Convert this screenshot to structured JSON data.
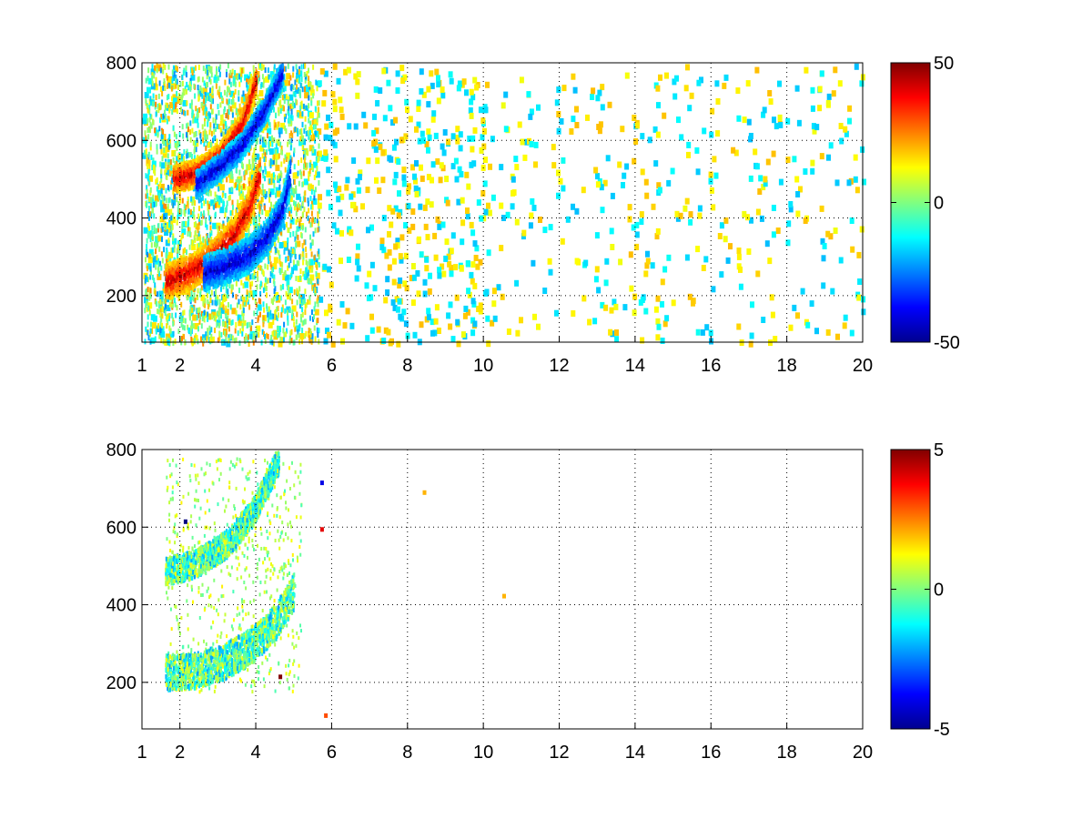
{
  "chart_data": [
    {
      "type": "heatmap",
      "title": "",
      "xlabel": "",
      "ylabel": "",
      "xlim": [
        1,
        20
      ],
      "ylim": [
        80,
        800
      ],
      "x_ticks": [
        1,
        2,
        4,
        6,
        8,
        10,
        12,
        14,
        16,
        18,
        20
      ],
      "x_tick_labels": [
        "1",
        "2",
        "4",
        "6",
        "8",
        "10",
        "12",
        "14",
        "16",
        "18",
        "20"
      ],
      "y_ticks": [
        200,
        400,
        600,
        800
      ],
      "y_tick_labels": [
        "200",
        "400",
        "600",
        "800"
      ],
      "grid": true,
      "colormap": "jet",
      "clim": [
        -50,
        50
      ],
      "colorbar": {
        "location": "right",
        "ticks": [
          -50,
          0,
          50
        ],
        "tick_labels": [
          "-50",
          "0",
          "50"
        ]
      },
      "features": [
        {
          "band": "upper",
          "sign": "positive",
          "points": [
            [
              1.8,
              505
            ],
            [
              2.4,
              520
            ],
            [
              3.0,
              560
            ],
            [
              3.6,
              640
            ],
            [
              4.0,
              760
            ]
          ]
        },
        {
          "band": "upper",
          "sign": "negative",
          "points": [
            [
              2.4,
              490
            ],
            [
              3.0,
              535
            ],
            [
              3.6,
              590
            ],
            [
              4.2,
              680
            ],
            [
              4.7,
              780
            ]
          ]
        },
        {
          "band": "lower",
          "sign": "positive",
          "points": [
            [
              1.6,
              240
            ],
            [
              2.2,
              262
            ],
            [
              2.8,
              300
            ],
            [
              3.4,
              360
            ],
            [
              3.8,
              430
            ],
            [
              4.1,
              520
            ]
          ]
        },
        {
          "band": "lower",
          "sign": "negative",
          "points": [
            [
              2.6,
              262
            ],
            [
              3.2,
              282
            ],
            [
              3.8,
              310
            ],
            [
              4.3,
              360
            ],
            [
              4.7,
              430
            ],
            [
              4.9,
              520
            ]
          ]
        }
      ],
      "scatter_x_range": [
        1,
        20
      ],
      "scatter_density": "dense below x=10, sparse above",
      "scatter_dominant_values": [
        -15,
        15
      ]
    },
    {
      "type": "heatmap",
      "title": "",
      "xlabel": "",
      "ylabel": "",
      "xlim": [
        1,
        20
      ],
      "ylim": [
        80,
        800
      ],
      "x_ticks": [
        1,
        2,
        4,
        6,
        8,
        10,
        12,
        14,
        16,
        18,
        20
      ],
      "x_tick_labels": [
        "1",
        "2",
        "4",
        "6",
        "8",
        "10",
        "12",
        "14",
        "16",
        "18",
        "20"
      ],
      "y_ticks": [
        200,
        400,
        600,
        800
      ],
      "y_tick_labels": [
        "200",
        "400",
        "600",
        "800"
      ],
      "grid": true,
      "colormap": "jet",
      "clim": [
        -5,
        5
      ],
      "colorbar": {
        "location": "right",
        "ticks": [
          -5,
          0,
          5
        ],
        "tick_labels": [
          "-5",
          "0",
          "5"
        ]
      },
      "features": [
        {
          "band": "upper",
          "sign": "mixed",
          "points": [
            [
              1.6,
              490
            ],
            [
              2.4,
              510
            ],
            [
              3.2,
              560
            ],
            [
              3.9,
              640
            ],
            [
              4.6,
              780
            ]
          ]
        },
        {
          "band": "lower",
          "sign": "mixed",
          "points": [
            [
              1.6,
              230
            ],
            [
              2.4,
              235
            ],
            [
              3.2,
              260
            ],
            [
              3.9,
              300
            ],
            [
              4.5,
              360
            ],
            [
              5.0,
              440
            ]
          ]
        }
      ],
      "outliers": [
        {
          "x": 10.5,
          "y": 428,
          "value": 2
        },
        {
          "x": 8.4,
          "y": 695,
          "value": 2
        },
        {
          "x": 5.7,
          "y": 600,
          "value": 4
        },
        {
          "x": 5.7,
          "y": 720,
          "value": -4
        },
        {
          "x": 5.8,
          "y": 120,
          "value": 3
        },
        {
          "x": 4.6,
          "y": 220,
          "value": 5
        },
        {
          "x": 2.1,
          "y": 620,
          "value": -5
        }
      ]
    }
  ]
}
